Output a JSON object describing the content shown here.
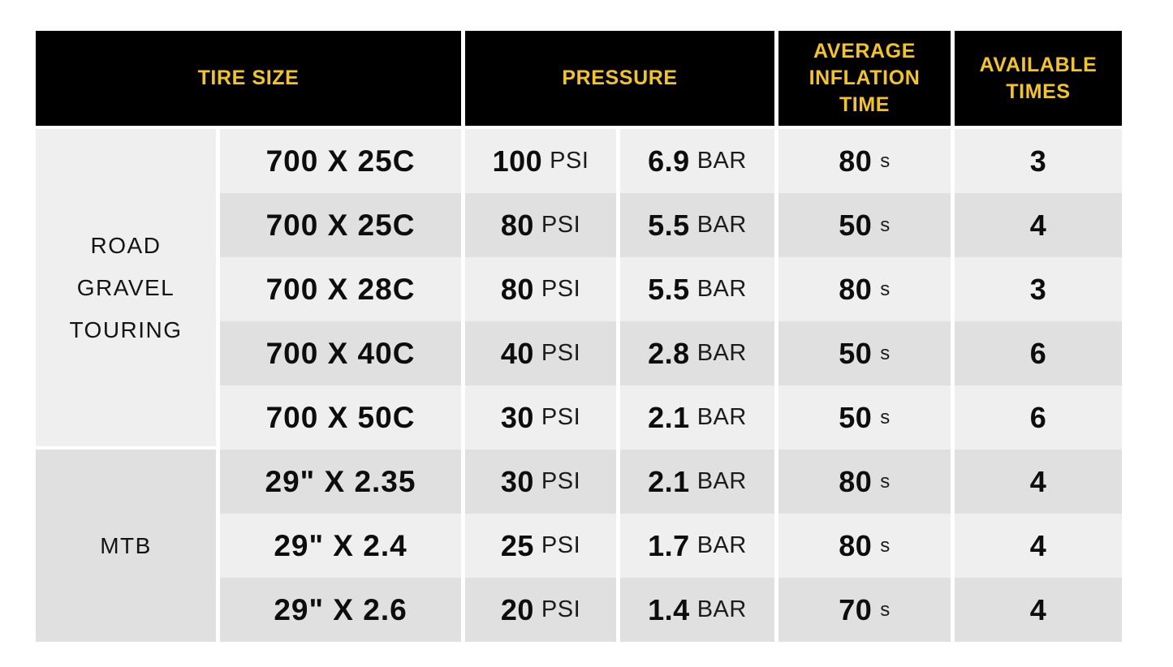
{
  "chart_data": {
    "type": "table",
    "title": "",
    "columns": [
      "TIRE SIZE",
      "PRESSURE",
      "AVERAGE INFLATION TIME",
      "AVAILABLE TIMES"
    ],
    "pressure_subcolumns": [
      "PSI",
      "BAR"
    ],
    "row_groups": [
      {
        "lines": [
          "ROAD",
          "GRAVEL",
          "TOURING"
        ],
        "label": "ROAD GRAVEL TOURING",
        "row_span": 5
      },
      {
        "lines": [
          "MTB"
        ],
        "label": "MTB",
        "row_span": 3
      }
    ],
    "rows": [
      {
        "tire_size": "700 X 25C",
        "psi": "100",
        "psi_unit": "PSI",
        "bar": "6.9",
        "bar_unit": "BAR",
        "time": "80",
        "time_unit": "s",
        "available": "3"
      },
      {
        "tire_size": "700 X 25C",
        "psi": "80",
        "psi_unit": "PSI",
        "bar": "5.5",
        "bar_unit": "BAR",
        "time": "50",
        "time_unit": "s",
        "available": "4"
      },
      {
        "tire_size": "700 X 28C",
        "psi": "80",
        "psi_unit": "PSI",
        "bar": "5.5",
        "bar_unit": "BAR",
        "time": "80",
        "time_unit": "s",
        "available": "3"
      },
      {
        "tire_size": "700 X 40C",
        "psi": "40",
        "psi_unit": "PSI",
        "bar": "2.8",
        "bar_unit": "BAR",
        "time": "50",
        "time_unit": "s",
        "available": "6"
      },
      {
        "tire_size": "700 X 50C",
        "psi": "30",
        "psi_unit": "PSI",
        "bar": "2.1",
        "bar_unit": "BAR",
        "time": "50",
        "time_unit": "s",
        "available": "6"
      },
      {
        "tire_size": "29\" X 2.35",
        "psi": "30",
        "psi_unit": "PSI",
        "bar": "2.1",
        "bar_unit": "BAR",
        "time": "80",
        "time_unit": "s",
        "available": "4"
      },
      {
        "tire_size": "29\" X 2.4",
        "psi": "25",
        "psi_unit": "PSI",
        "bar": "1.7",
        "bar_unit": "BAR",
        "time": "80",
        "time_unit": "s",
        "available": "4"
      },
      {
        "tire_size": "29\" X 2.6",
        "psi": "20",
        "psi_unit": "PSI",
        "bar": "1.4",
        "bar_unit": "BAR",
        "time": "70",
        "time_unit": "s",
        "available": "4"
      }
    ]
  },
  "headers": {
    "tire_size": "TIRE SIZE",
    "pressure": "PRESSURE",
    "inflation_time": "AVERAGE INFLATION TIME",
    "available_times": "AVAILABLE TIMES"
  },
  "colors": {
    "header_bg": "#000000",
    "header_text": "#f5c51b",
    "row_light": "#efefef",
    "row_dark": "#e0e0e0",
    "text": "#0d0d0d",
    "page_bg": "#ffffff"
  }
}
